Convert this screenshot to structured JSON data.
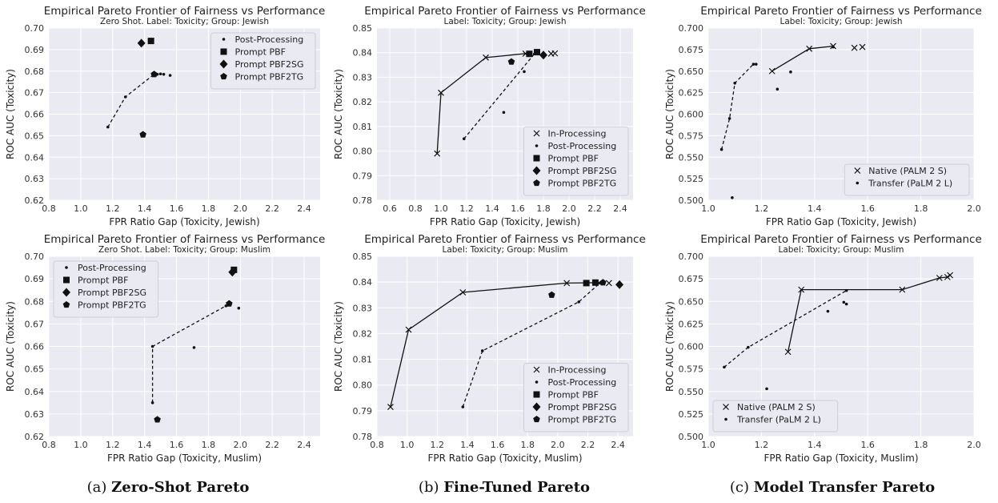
{
  "chart_data": [
    {
      "id": "a1",
      "type": "scatter",
      "title": "Empirical Pareto Frontier of Fairness vs Performance",
      "subtitle": "Zero Shot. Label: Toxicity; Group: Jewish",
      "xlabel": "FPR Ratio Gap (Toxicity, Jewish)",
      "ylabel": "ROC AUC (Toxicity)",
      "xlim": [
        0.8,
        2.5
      ],
      "ylim": [
        0.62,
        0.7
      ],
      "xticks": [
        "0.8",
        "1.0",
        "1.2",
        "1.4",
        "1.6",
        "1.8",
        "2.0",
        "2.2",
        "2.4"
      ],
      "yticks": [
        "0.62",
        "0.63",
        "0.64",
        "0.65",
        "0.66",
        "0.67",
        "0.68",
        "0.69",
        "0.70"
      ],
      "legend": "top-right",
      "series": [
        {
          "name": "Post-Processing",
          "marker": "dot",
          "points": [
            [
              1.17,
              0.654
            ],
            [
              1.28,
              0.668
            ],
            [
              1.46,
              0.6785
            ],
            [
              1.48,
              0.6785
            ],
            [
              1.5,
              0.6787
            ],
            [
              1.52,
              0.6785
            ],
            [
              1.56,
              0.678
            ]
          ]
        },
        {
          "name": "Prompt PBF",
          "marker": "square",
          "points": [
            [
              1.44,
              0.694
            ]
          ]
        },
        {
          "name": "Prompt PBF2SG",
          "marker": "diamond",
          "points": [
            [
              1.38,
              0.693
            ]
          ]
        },
        {
          "name": "Prompt PBF2TG",
          "marker": "pentagon",
          "points": [
            [
              1.39,
              0.6505
            ],
            [
              1.46,
              0.6785
            ]
          ]
        }
      ],
      "frontiers": [
        {
          "style": "dashed",
          "points": [
            [
              1.17,
              0.654
            ],
            [
              1.28,
              0.668
            ],
            [
              1.46,
              0.6785
            ]
          ]
        }
      ]
    },
    {
      "id": "b1",
      "type": "scatter",
      "title": "Empirical Pareto Frontier of Fairness vs Performance",
      "subtitle": "Label: Toxicity; Group: Jewish",
      "xlabel": "FPR Ratio Gap (Toxicity, Jewish)",
      "ylabel": "ROC AUC (Toxicity)",
      "xlim": [
        0.5,
        2.5
      ],
      "ylim": [
        0.78,
        0.85
      ],
      "xticks": [
        "0.6",
        "0.8",
        "1.0",
        "1.2",
        "1.4",
        "1.6",
        "1.8",
        "2.0",
        "2.2",
        "2.4"
      ],
      "yticks": [
        "0.78",
        "0.79",
        "0.80",
        "0.81",
        "0.82",
        "0.83",
        "0.84",
        "0.85"
      ],
      "legend": "bottom-right",
      "series": [
        {
          "name": "In-Processing",
          "marker": "x",
          "points": [
            [
              0.97,
              0.799
            ],
            [
              1.0,
              0.8237
            ],
            [
              1.35,
              0.838
            ],
            [
              1.66,
              0.8396
            ],
            [
              1.86,
              0.8396
            ],
            [
              1.89,
              0.8397
            ]
          ]
        },
        {
          "name": "Post-Processing",
          "marker": "dot",
          "points": [
            [
              1.18,
              0.805
            ],
            [
              1.49,
              0.8157
            ],
            [
              1.65,
              0.8323
            ],
            [
              1.73,
              0.8395
            ],
            [
              1.76,
              0.8396
            ]
          ]
        },
        {
          "name": "Prompt PBF",
          "marker": "square",
          "points": [
            [
              1.69,
              0.8395
            ],
            [
              1.75,
              0.8402
            ]
          ]
        },
        {
          "name": "Prompt PBF2SG",
          "marker": "diamond",
          "points": [
            [
              1.8,
              0.839
            ]
          ]
        },
        {
          "name": "Prompt PBF2TG",
          "marker": "pentagon",
          "points": [
            [
              1.55,
              0.8363
            ]
          ]
        }
      ],
      "frontiers": [
        {
          "style": "solid",
          "points": [
            [
              0.97,
              0.799
            ],
            [
              1.0,
              0.8237
            ],
            [
              1.35,
              0.838
            ],
            [
              1.66,
              0.8396
            ]
          ]
        },
        {
          "style": "dashed",
          "points": [
            [
              1.18,
              0.805
            ],
            [
              1.73,
              0.8395
            ]
          ]
        }
      ]
    },
    {
      "id": "c1",
      "type": "scatter",
      "title": "Empirical Pareto Frontier of Fairness vs Performance",
      "subtitle": "Label: Toxicity; Group: Jewish",
      "xlabel": "FPR Ratio Gap (Toxicity, Jewish)",
      "ylabel": "ROC AUC (Toxicity)",
      "xlim": [
        1.0,
        2.0
      ],
      "ylim": [
        0.5,
        0.7
      ],
      "xticks": [
        "1.0",
        "1.2",
        "1.4",
        "1.6",
        "1.8",
        "2.0"
      ],
      "yticks": [
        "0.500",
        "0.525",
        "0.550",
        "0.575",
        "0.600",
        "0.625",
        "0.650",
        "0.675",
        "0.700"
      ],
      "legend": "bottom-right",
      "series": [
        {
          "name": "Native (PALM 2 S)",
          "marker": "x",
          "points": [
            [
              1.24,
              0.65
            ],
            [
              1.38,
              0.676
            ],
            [
              1.47,
              0.679
            ],
            [
              1.55,
              0.677
            ],
            [
              1.58,
              0.678
            ]
          ]
        },
        {
          "name": "Transfer (PaLM 2 L)",
          "marker": "dot",
          "points": [
            [
              1.05,
              0.559
            ],
            [
              1.08,
              0.595
            ],
            [
              1.09,
              0.503
            ],
            [
              1.1,
              0.636
            ],
            [
              1.17,
              0.658
            ],
            [
              1.18,
              0.658
            ],
            [
              1.26,
              0.629
            ],
            [
              1.31,
              0.649
            ],
            [
              1.47,
              0.678
            ]
          ]
        }
      ],
      "frontiers": [
        {
          "style": "solid",
          "points": [
            [
              1.24,
              0.65
            ],
            [
              1.38,
              0.676
            ],
            [
              1.47,
              0.679
            ]
          ]
        },
        {
          "style": "dashed",
          "points": [
            [
              1.05,
              0.559
            ],
            [
              1.08,
              0.595
            ],
            [
              1.1,
              0.636
            ],
            [
              1.17,
              0.658
            ]
          ]
        }
      ]
    },
    {
      "id": "a2",
      "type": "scatter",
      "title": "Empirical Pareto Frontier of Fairness vs Performance",
      "subtitle": "Zero Shot. Label: Toxicity; Group: Muslim",
      "xlabel": "FPR Ratio Gap (Toxicity, Muslim)",
      "ylabel": "ROC AUC (Toxicity)",
      "xlim": [
        0.8,
        2.5
      ],
      "ylim": [
        0.62,
        0.7
      ],
      "xticks": [
        "0.8",
        "1.0",
        "1.2",
        "1.4",
        "1.6",
        "1.8",
        "2.0",
        "2.2",
        "2.4"
      ],
      "yticks": [
        "0.62",
        "0.63",
        "0.64",
        "0.65",
        "0.66",
        "0.67",
        "0.68",
        "0.69",
        "0.70"
      ],
      "legend": "top-left",
      "series": [
        {
          "name": "Post-Processing",
          "marker": "dot",
          "points": [
            [
              1.45,
              0.635
            ],
            [
              1.45,
              0.66
            ],
            [
              1.71,
              0.6595
            ],
            [
              1.91,
              0.678
            ],
            [
              1.93,
              0.679
            ],
            [
              1.99,
              0.677
            ]
          ]
        },
        {
          "name": "Prompt PBF",
          "marker": "square",
          "points": [
            [
              1.96,
              0.694
            ]
          ]
        },
        {
          "name": "Prompt PBF2SG",
          "marker": "diamond",
          "points": [
            [
              1.95,
              0.693
            ]
          ]
        },
        {
          "name": "Prompt PBF2TG",
          "marker": "pentagon",
          "points": [
            [
              1.48,
              0.6275
            ],
            [
              1.93,
              0.679
            ]
          ]
        }
      ],
      "frontiers": [
        {
          "style": "dashed",
          "points": [
            [
              1.45,
              0.635
            ],
            [
              1.45,
              0.66
            ],
            [
              1.91,
              0.678
            ]
          ]
        }
      ]
    },
    {
      "id": "b2",
      "type": "scatter",
      "title": "Empirical Pareto Frontier of Fairness vs Performance",
      "subtitle": "Label: Toxicity; Group: Muslim",
      "xlabel": "FPR Ratio Gap (Toxicity, Muslim)",
      "ylabel": "ROC AUC (Toxicity)",
      "xlim": [
        0.8,
        2.5
      ],
      "ylim": [
        0.78,
        0.85
      ],
      "xticks": [
        "0.8",
        "1.0",
        "1.2",
        "1.4",
        "1.6",
        "1.8",
        "2.0",
        "2.2",
        "2.4"
      ],
      "yticks": [
        "0.78",
        "0.79",
        "0.80",
        "0.81",
        "0.82",
        "0.83",
        "0.84",
        "0.85"
      ],
      "legend": "bottom-right",
      "series": [
        {
          "name": "In-Processing",
          "marker": "x",
          "points": [
            [
              0.89,
              0.7915
            ],
            [
              1.01,
              0.8215
            ],
            [
              1.37,
              0.836
            ],
            [
              2.06,
              0.8396
            ],
            [
              2.34,
              0.8396
            ]
          ]
        },
        {
          "name": "Post-Processing",
          "marker": "dot",
          "points": [
            [
              1.37,
              0.7915
            ],
            [
              1.5,
              0.8133
            ],
            [
              2.14,
              0.8323
            ],
            [
              2.28,
              0.8396
            ]
          ]
        },
        {
          "name": "Prompt PBF",
          "marker": "square",
          "points": [
            [
              2.19,
              0.8396
            ],
            [
              2.25,
              0.8398
            ]
          ]
        },
        {
          "name": "Prompt PBF2SG",
          "marker": "diamond",
          "points": [
            [
              2.41,
              0.839
            ]
          ]
        },
        {
          "name": "Prompt PBF2TG",
          "marker": "pentagon",
          "points": [
            [
              1.96,
              0.835
            ],
            [
              2.3,
              0.8398
            ]
          ]
        }
      ],
      "frontiers": [
        {
          "style": "solid",
          "points": [
            [
              0.89,
              0.7915
            ],
            [
              1.01,
              0.8215
            ],
            [
              1.37,
              0.836
            ],
            [
              2.06,
              0.8396
            ],
            [
              2.3,
              0.8398
            ]
          ]
        },
        {
          "style": "dashed",
          "points": [
            [
              1.37,
              0.7915
            ],
            [
              1.5,
              0.8133
            ],
            [
              2.14,
              0.8323
            ],
            [
              2.28,
              0.8396
            ]
          ]
        }
      ]
    },
    {
      "id": "c2",
      "type": "scatter",
      "title": "Empirical Pareto Frontier of Fairness vs Performance",
      "subtitle": "Label: Toxicity; Group: Muslim",
      "xlabel": "FPR Ratio Gap (Toxicity, Muslim)",
      "ylabel": "ROC AUC (Toxicity)",
      "xlim": [
        1.0,
        2.0
      ],
      "ylim": [
        0.5,
        0.7
      ],
      "xticks": [
        "1.0",
        "1.2",
        "1.4",
        "1.6",
        "1.8",
        "2.0"
      ],
      "yticks": [
        "0.500",
        "0.525",
        "0.550",
        "0.575",
        "0.600",
        "0.625",
        "0.650",
        "0.675",
        "0.700"
      ],
      "legend": "bottom-left",
      "series": [
        {
          "name": "Native (PALM 2 S)",
          "marker": "x",
          "points": [
            [
              1.3,
              0.594
            ],
            [
              1.35,
              0.663
            ],
            [
              1.73,
              0.663
            ],
            [
              1.87,
              0.676
            ],
            [
              1.9,
              0.677
            ],
            [
              1.91,
              0.679
            ]
          ]
        },
        {
          "name": "Transfer (PaLM 2 L)",
          "marker": "dot",
          "points": [
            [
              1.06,
              0.577
            ],
            [
              1.15,
              0.599
            ],
            [
              1.22,
              0.553
            ],
            [
              1.45,
              0.639
            ],
            [
              1.51,
              0.649
            ],
            [
              1.52,
              0.647
            ],
            [
              1.52,
              0.662
            ]
          ]
        }
      ],
      "frontiers": [
        {
          "style": "solid",
          "points": [
            [
              1.3,
              0.594
            ],
            [
              1.35,
              0.663
            ],
            [
              1.73,
              0.663
            ],
            [
              1.87,
              0.676
            ],
            [
              1.9,
              0.677
            ],
            [
              1.91,
              0.679
            ]
          ]
        },
        {
          "style": "dashed",
          "points": [
            [
              1.06,
              0.577
            ],
            [
              1.15,
              0.599
            ],
            [
              1.52,
              0.662
            ]
          ]
        }
      ]
    }
  ],
  "captions": [
    {
      "prefix": "(a) ",
      "bold": "Zero-Shot Pareto"
    },
    {
      "prefix": "(b) ",
      "bold": "Fine-Tuned Pareto"
    },
    {
      "prefix": "(c) ",
      "bold": "Model Transfer Pareto"
    }
  ]
}
